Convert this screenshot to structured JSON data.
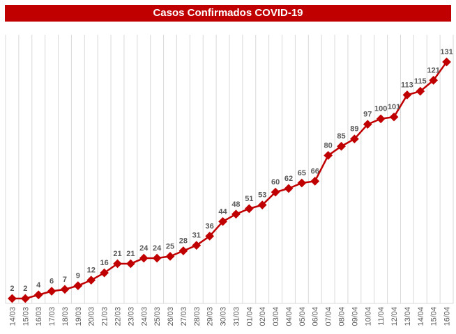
{
  "chart_data": {
    "type": "line",
    "title": "Casos Confirmados COVID-19",
    "xlabel": "",
    "ylabel": "",
    "categories": [
      "14/03",
      "15/03",
      "16/03",
      "17/03",
      "18/03",
      "19/03",
      "20/03",
      "21/03",
      "22/03",
      "23/03",
      "24/03",
      "25/03",
      "26/03",
      "27/03",
      "28/03",
      "29/03",
      "30/03",
      "31/03",
      "01/04",
      "02/04",
      "03/04",
      "04/04",
      "05/04",
      "06/04",
      "07/04",
      "08/04",
      "09/04",
      "10/04",
      "11/04",
      "12/04",
      "13/04",
      "14/04",
      "15/04",
      "16/04"
    ],
    "series": [
      {
        "name": "Casos Confirmados",
        "color": "#c00000",
        "values": [
          2,
          2,
          4,
          6,
          7,
          9,
          12,
          16,
          21,
          21,
          24,
          24,
          25,
          28,
          31,
          36,
          44,
          48,
          51,
          53,
          60,
          62,
          65,
          66,
          80,
          85,
          89,
          97,
          100,
          101,
          113,
          115,
          121,
          131
        ]
      }
    ],
    "ylim": [
      0,
      135
    ],
    "grid": "vertical",
    "data_labels": true
  }
}
